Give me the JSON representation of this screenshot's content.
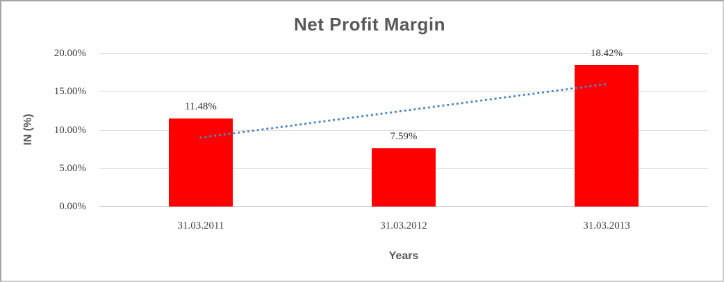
{
  "chart_data": {
    "type": "bar",
    "title": "Net Profit Margin",
    "xlabel": "Years",
    "ylabel": "IN (%)",
    "categories": [
      "31.03.2011",
      "31.03.2012",
      "31.03.2013"
    ],
    "series": [
      {
        "name": "Net Profit Margin",
        "type": "bar",
        "color": "#ff0000",
        "values": [
          11.48,
          7.59,
          18.42
        ],
        "data_labels": [
          "11.48%",
          "7.59%",
          "18.42%"
        ]
      },
      {
        "name": "Linear trendline",
        "type": "line",
        "style": "dotted",
        "color": "#4f86c6",
        "values": [
          9.0,
          12.5,
          16.0
        ]
      }
    ],
    "y_ticks": {
      "values": [
        0,
        5,
        10,
        15,
        20
      ],
      "labels": [
        "0.00%",
        "5.00%",
        "10.00%",
        "15.00%",
        "20.00%"
      ]
    },
    "ylim": [
      0,
      20
    ],
    "grid": true,
    "legend": false,
    "bar_color": "#ff0000",
    "trendline_color": "#4f86c6",
    "title_color": "#595959",
    "label_color": "#3d3d3d"
  }
}
